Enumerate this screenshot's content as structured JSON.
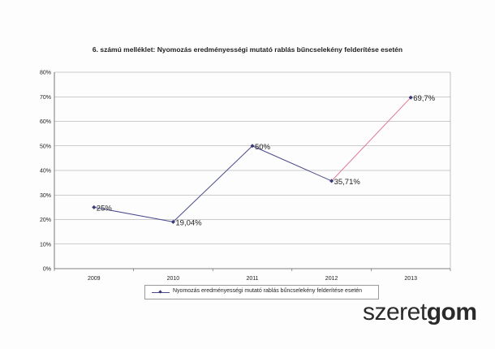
{
  "chart_data": {
    "type": "line",
    "title": "6. számú melléklet: Nyomozás eredményességi mutató rablás bűncselekény felderítése esetén",
    "categories": [
      "2009",
      "2010",
      "2011",
      "2012",
      "2013"
    ],
    "series": [
      {
        "name": "Nyomozás eredményességi mutató rablás bűncselekény felderítése esetén",
        "values": [
          25,
          19.04,
          50,
          35.71,
          69.7
        ],
        "labels": [
          "25%",
          "19,04%",
          "50%",
          "35,71%",
          "69,7%"
        ]
      }
    ],
    "ylim": [
      0,
      80
    ],
    "yticks": [
      "0%",
      "10%",
      "20%",
      "30%",
      "40%",
      "50%",
      "60%",
      "70%",
      "80%"
    ],
    "grid": true,
    "legend": "bottom"
  },
  "watermark": {
    "part1": "szeret",
    "part2": "gom"
  },
  "colors": {
    "line": "#4a4a8a",
    "marker": "#3a3a7a",
    "last_segment": "#e07a9a",
    "grid": "#9a9a9a"
  }
}
